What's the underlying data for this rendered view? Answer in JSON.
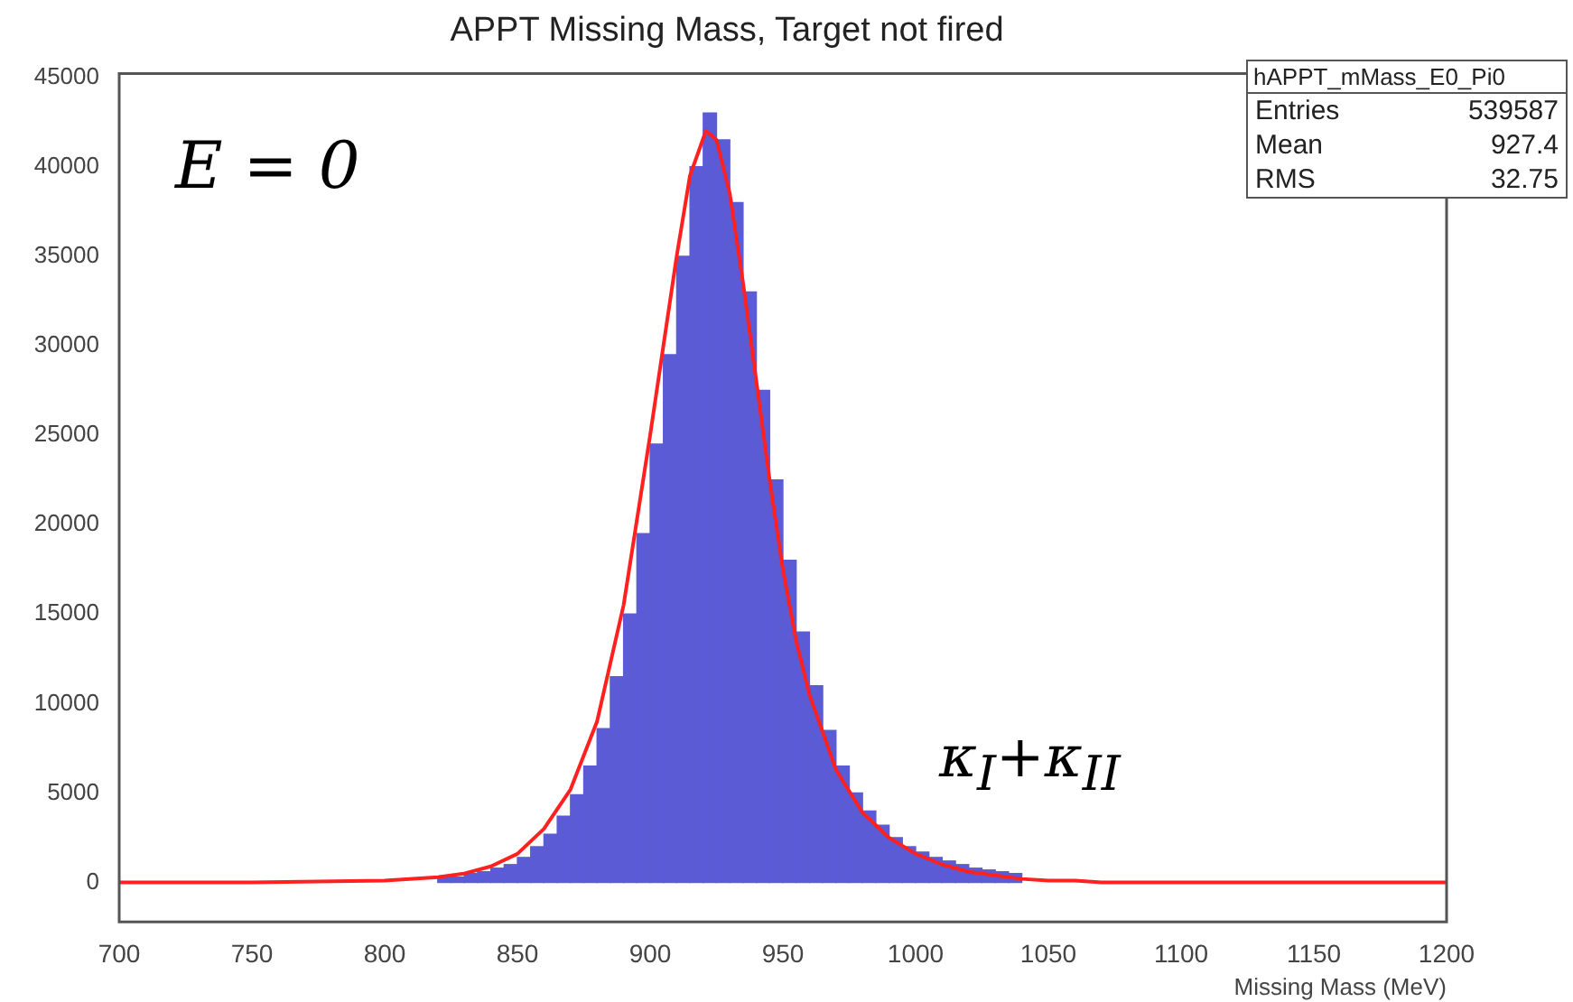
{
  "chart_data": {
    "type": "histogram",
    "title": "APPT Missing Mass, Target not fired",
    "xlabel": "Missing Mass (MeV)",
    "bins": [
      700,
      705,
      710,
      715,
      720,
      725,
      730,
      735,
      740,
      745,
      750,
      755,
      760,
      765,
      770,
      775,
      780,
      785,
      790,
      795,
      800,
      805,
      810,
      815,
      820,
      825,
      830,
      835,
      840,
      845,
      850,
      855,
      860,
      865,
      870,
      875,
      880,
      885,
      890,
      895,
      900,
      905,
      910,
      915,
      920,
      925,
      930,
      935,
      940,
      945,
      950,
      955,
      960,
      965,
      970,
      975,
      980,
      985,
      990,
      995,
      1000,
      1005,
      1010,
      1015,
      1020,
      1025,
      1030,
      1035,
      1040,
      1045,
      1050,
      1055,
      1060,
      1065,
      1070,
      1075,
      1080,
      1085,
      1090,
      1095,
      1100,
      1105,
      1110,
      1115,
      1120,
      1125,
      1130,
      1135,
      1140,
      1145,
      1150,
      1155,
      1160,
      1165,
      1170,
      1175,
      1180,
      1185,
      1190,
      1195,
      1200
    ],
    "values": [
      null,
      null,
      null,
      null,
      null,
      null,
      null,
      null,
      null,
      null,
      null,
      null,
      null,
      null,
      null,
      null,
      null,
      null,
      null,
      null,
      null,
      null,
      null,
      null,
      300,
      300,
      500,
      600,
      800,
      1000,
      1400,
      2000,
      2700,
      3700,
      4900,
      6500,
      8600,
      11500,
      15000,
      19500,
      24500,
      29500,
      35000,
      40000,
      43000,
      41500,
      38000,
      33000,
      27500,
      22500,
      18000,
      14000,
      11000,
      8500,
      6500,
      5000,
      4000,
      3200,
      2500,
      2000,
      1700,
      1400,
      1200,
      1000,
      800,
      700,
      600,
      500,
      null,
      null,
      null,
      null,
      null,
      null,
      null,
      null,
      null,
      null,
      null,
      null,
      null,
      null,
      null,
      null,
      null,
      null,
      null,
      null,
      null,
      null,
      null,
      null,
      null,
      null,
      null,
      null,
      null,
      null,
      null,
      null
    ],
    "color": "#5b5bd6",
    "series": [
      {
        "type": "line",
        "color": "#ff2020",
        "x": [
          700,
          750,
          800,
          820,
          830,
          840,
          850,
          860,
          870,
          880,
          890,
          900,
          905,
          910,
          915,
          921,
          925,
          930,
          935,
          940,
          945,
          950,
          955,
          960,
          970,
          980,
          990,
          1000,
          1010,
          1020,
          1030,
          1040,
          1050,
          1060,
          1070,
          1200
        ],
        "values": [
          0,
          0,
          100,
          300,
          500,
          900,
          1600,
          3000,
          5200,
          9000,
          15500,
          25000,
          30000,
          35000,
          39500,
          42000,
          41500,
          38500,
          33500,
          28000,
          22500,
          17500,
          13500,
          10500,
          6300,
          3900,
          2500,
          1600,
          1000,
          600,
          400,
          200,
          100,
          100,
          0,
          0
        ]
      }
    ],
    "xlim": [
      700,
      1200
    ],
    "xticks": [
      700,
      750,
      800,
      850,
      900,
      950,
      1000,
      1050,
      1100,
      1150,
      1200
    ],
    "ylim": [
      -2200,
      45200
    ],
    "yticks": [
      0,
      5000,
      10000,
      15000,
      20000,
      25000,
      30000,
      35000,
      40000,
      45000
    ],
    "legend": false,
    "annotations": [
      "E = 0",
      "κ$_{I}$+κ$_{II}$",
      "hAPPT_mMass_E0_Pi0",
      "Entries 539587",
      "Mean 927.4",
      "RMS 32.75"
    ]
  }
}
